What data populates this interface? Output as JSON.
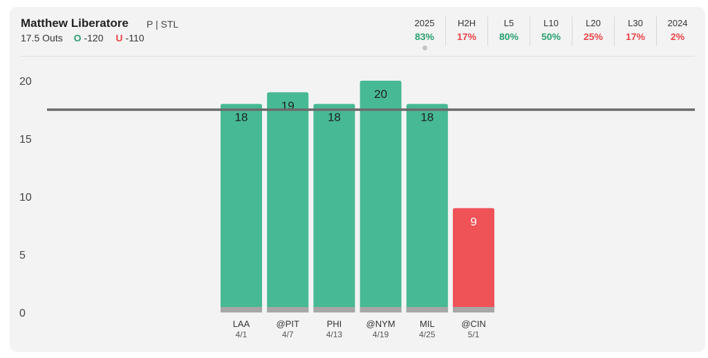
{
  "header": {
    "player_name": "Matthew Liberatore",
    "player_meta": "P | STL",
    "line_label": "17.5 Outs",
    "over_tag": "O",
    "over_odds": "-120",
    "under_tag": "U",
    "under_odds": "-110"
  },
  "stats": [
    {
      "label": "2025",
      "value": "83%",
      "color": "green"
    },
    {
      "label": "H2H",
      "value": "17%",
      "color": "red"
    },
    {
      "label": "L5",
      "value": "80%",
      "color": "green"
    },
    {
      "label": "L10",
      "value": "50%",
      "color": "green"
    },
    {
      "label": "L20",
      "value": "25%",
      "color": "red"
    },
    {
      "label": "L30",
      "value": "17%",
      "color": "red"
    },
    {
      "label": "2024",
      "value": "2%",
      "color": "red"
    }
  ],
  "chart_data": {
    "type": "bar",
    "ylim": [
      0,
      20
    ],
    "yticks": [
      "0",
      "5",
      "10",
      "15",
      "20"
    ],
    "line_value": 17.5,
    "categories": [
      {
        "opponent": "LAA",
        "date": "4/1"
      },
      {
        "opponent": "@PIT",
        "date": "4/7"
      },
      {
        "opponent": "PHI",
        "date": "4/13"
      },
      {
        "opponent": "@NYM",
        "date": "4/19"
      },
      {
        "opponent": "MIL",
        "date": "4/25"
      },
      {
        "opponent": "@CIN",
        "date": "5/1"
      }
    ],
    "values": [
      18,
      19,
      18,
      20,
      18,
      9
    ],
    "colors": {
      "over": "#47b994",
      "under": "#ef5257",
      "line": "#6b6b6b",
      "base": "#a7a7a7"
    }
  }
}
